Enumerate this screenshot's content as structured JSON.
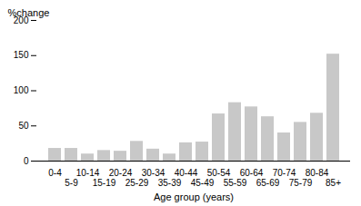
{
  "chart_data": {
    "type": "bar",
    "categories": [
      "0-4",
      "5-9",
      "10-14",
      "15-19",
      "20-24",
      "25-29",
      "30-34",
      "35-39",
      "40-44",
      "45-49",
      "50-54",
      "55-59",
      "60-64",
      "65-69",
      "70-74",
      "75-79",
      "80-84",
      "85+"
    ],
    "values": [
      18,
      18,
      10,
      15,
      14,
      28,
      17,
      10,
      26,
      27,
      67,
      83,
      77,
      63,
      40,
      55,
      68,
      152
    ],
    "color": "#c8c8c8",
    "xlabel": "Age group (years)",
    "ylabel": "%change",
    "ylim": [
      0,
      200
    ],
    "yticks": [
      0,
      50,
      100,
      150,
      200
    ],
    "grid": false
  }
}
